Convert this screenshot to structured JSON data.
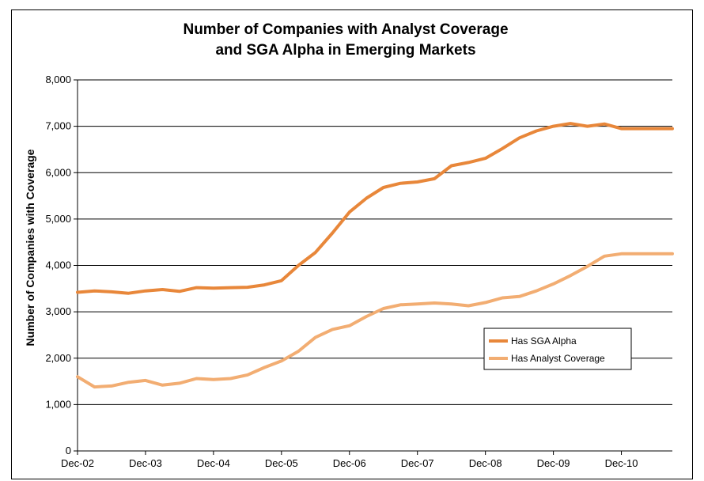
{
  "chart_data": {
    "type": "line",
    "title": "Number of Companies with Analyst Coverage",
    "subtitle": "and SGA Alpha in Emerging Markets",
    "ylabel": "Number of Companies with Coverage",
    "xlabel": "",
    "ylim": [
      0,
      8000
    ],
    "y_ticks": [
      "0",
      "1,000",
      "2,000",
      "3,000",
      "4,000",
      "5,000",
      "6,000",
      "7,000",
      "8,000"
    ],
    "x_ticks": [
      "Dec-02",
      "Dec-03",
      "Dec-04",
      "Dec-05",
      "Dec-06",
      "Dec-07",
      "Dec-08",
      "Dec-09",
      "Dec-10"
    ],
    "grid": true,
    "legend_position": "lower-right",
    "series": [
      {
        "name": "Has SGA Alpha",
        "color": "#E8873A",
        "x": [
          0,
          0.25,
          0.5,
          0.75,
          1.0,
          1.25,
          1.5,
          1.75,
          2.0,
          2.25,
          2.5,
          2.75,
          3.0,
          3.25,
          3.5,
          3.75,
          4.0,
          4.25,
          4.5,
          4.75,
          5.0,
          5.25,
          5.5,
          5.75,
          6.0,
          6.25,
          6.5,
          6.75,
          7.0,
          7.25,
          7.5,
          7.75,
          8.0,
          8.25,
          8.5,
          8.75
        ],
        "values": [
          3420,
          3450,
          3430,
          3400,
          3450,
          3480,
          3440,
          3520,
          3510,
          3520,
          3530,
          3580,
          3670,
          4000,
          4280,
          4700,
          5150,
          5450,
          5680,
          5770,
          5800,
          5870,
          6150,
          6220,
          6310,
          6520,
          6750,
          6900,
          7000,
          7060,
          7000,
          7050,
          6950,
          6950,
          6950,
          6950
        ]
      },
      {
        "name": "Has Analyst Coverage",
        "color": "#F2AD72",
        "x": [
          0,
          0.25,
          0.5,
          0.75,
          1.0,
          1.25,
          1.5,
          1.75,
          2.0,
          2.25,
          2.5,
          2.75,
          3.0,
          3.25,
          3.5,
          3.75,
          4.0,
          4.25,
          4.5,
          4.75,
          5.0,
          5.25,
          5.5,
          5.75,
          6.0,
          6.25,
          6.5,
          6.75,
          7.0,
          7.25,
          7.5,
          7.75,
          8.0,
          8.25,
          8.5,
          8.75
        ],
        "values": [
          1600,
          1380,
          1400,
          1480,
          1520,
          1420,
          1460,
          1560,
          1540,
          1560,
          1640,
          1800,
          1940,
          2150,
          2450,
          2620,
          2700,
          2900,
          3070,
          3150,
          3170,
          3190,
          3170,
          3130,
          3200,
          3300,
          3330,
          3450,
          3600,
          3780,
          3980,
          4200,
          4250,
          4250,
          4250,
          4250
        ]
      }
    ]
  }
}
